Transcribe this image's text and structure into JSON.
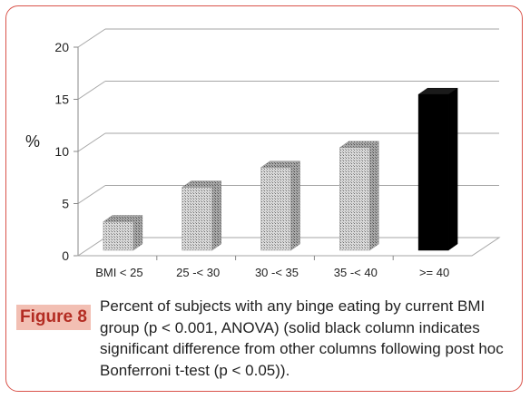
{
  "chart_data": {
    "type": "bar",
    "categories": [
      "BMI < 25",
      "25 -< 30",
      "30 -< 35",
      "35 -< 40",
      ">= 40"
    ],
    "values": [
      3,
      6.3,
      8.2,
      10.1,
      15.2
    ],
    "highlight": [
      false,
      false,
      false,
      false,
      true
    ],
    "title": "",
    "xlabel": "",
    "ylabel": "%",
    "ylim": [
      0,
      20
    ],
    "yticks": [
      0,
      5,
      10,
      15,
      20
    ],
    "grid": true,
    "style": "3d-column",
    "colors": {
      "pattern_fill": "#bdbdbd",
      "highlight_fill": "#000000",
      "grid": "#a6a6a6"
    }
  },
  "caption": {
    "label": "Figure 8",
    "text": "Percent of subjects with any binge eating by current BMI group (p < 0.001, ANOVA) (solid black column indicates significant difference from other columns following post hoc Bonferroni t-test (p < 0.05)).",
    "label_bg": "#f2bfb3",
    "label_color": "#b32c22"
  },
  "frame": {
    "border_color": "#d9534a"
  }
}
